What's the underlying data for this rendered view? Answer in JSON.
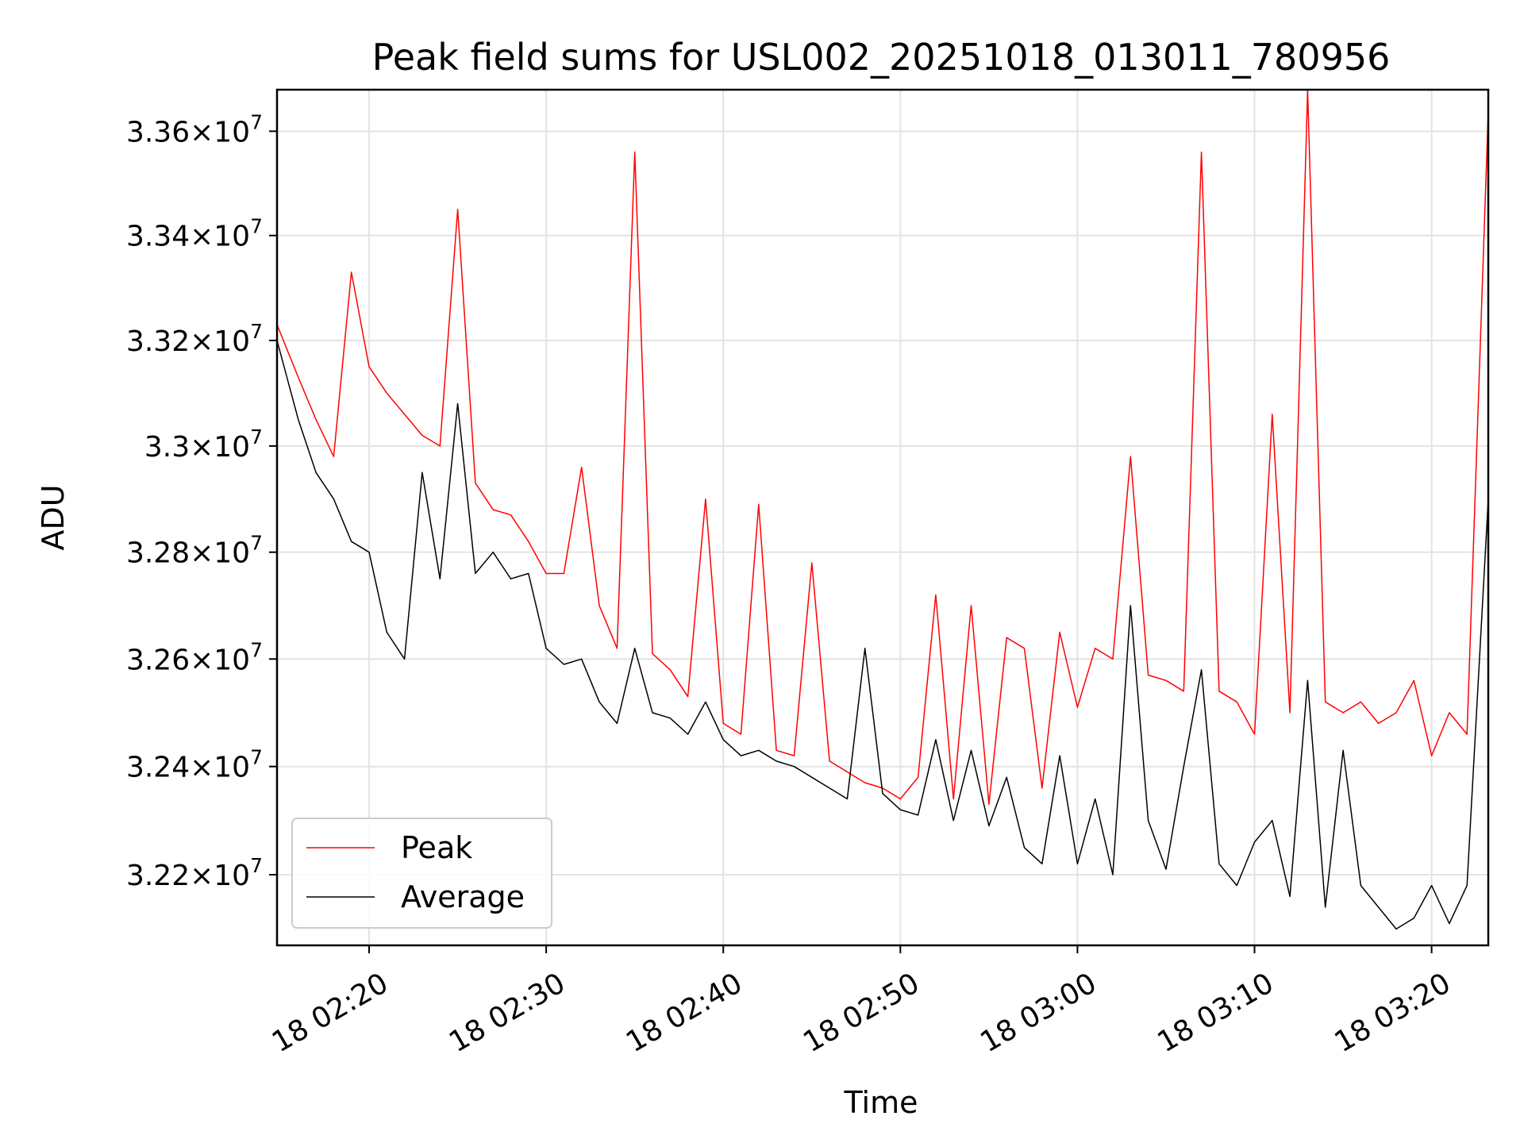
{
  "chart_data": {
    "type": "line",
    "title": "Peak field sums for USL002_20251018_013011_780956",
    "xlabel": "Time",
    "ylabel": "ADU",
    "x_ticks": [
      "18 02:20",
      "18 02:30",
      "18 02:40",
      "18 02:50",
      "18 03:00",
      "18 03:10",
      "18 03:20"
    ],
    "y_ticks": [
      {
        "value": 32200000,
        "mantissa": "3.22",
        "exp": "7"
      },
      {
        "value": 32400000,
        "mantissa": "3.24",
        "exp": "7"
      },
      {
        "value": 32600000,
        "mantissa": "3.26",
        "exp": "7"
      },
      {
        "value": 32800000,
        "mantissa": "3.28",
        "exp": "7"
      },
      {
        "value": 33000000,
        "mantissa": "3.3",
        "exp": "7"
      },
      {
        "value": 33200000,
        "mantissa": "3.32",
        "exp": "7"
      },
      {
        "value": 33400000,
        "mantissa": "3.34",
        "exp": "7"
      },
      {
        "value": 33600000,
        "mantissa": "3.36",
        "exp": "7"
      }
    ],
    "x_range_minutes_from_0220": [
      -5.2,
      63.2
    ],
    "ylim": [
      32070000,
      33680000
    ],
    "y_scale": "log",
    "grid": true,
    "legend_position": "lower-left",
    "series": [
      {
        "name": "Peak",
        "color": "#ff0000",
        "x": [
          -5.2,
          -4,
          -3,
          -2,
          -1,
          0,
          1,
          2,
          3,
          4,
          5,
          6,
          7,
          8,
          9,
          10,
          11,
          12,
          13,
          14,
          15,
          16,
          17,
          18,
          19,
          20,
          21,
          22,
          23,
          24,
          25,
          26,
          27,
          28,
          29,
          30,
          31,
          32,
          33,
          34,
          35,
          36,
          37,
          38,
          39,
          40,
          41,
          42,
          43,
          44,
          45,
          46,
          47,
          48,
          49,
          50,
          51,
          52,
          53,
          54,
          55,
          56,
          57,
          58,
          59,
          60,
          61,
          62,
          63.2
        ],
        "values": [
          33230000,
          33130000,
          33050000,
          32980000,
          33330000,
          33150000,
          33100000,
          33060000,
          33020000,
          33000000,
          33450000,
          32930000,
          32880000,
          32870000,
          32820000,
          32760000,
          32760000,
          32960000,
          32700000,
          32620000,
          33560000,
          32610000,
          32580000,
          32530000,
          32900000,
          32480000,
          32460000,
          32890000,
          32430000,
          32420000,
          32780000,
          32410000,
          32390000,
          32370000,
          32360000,
          32340000,
          32380000,
          32720000,
          32340000,
          32700000,
          32330000,
          32640000,
          32620000,
          32360000,
          32650000,
          32510000,
          32620000,
          32600000,
          32980000,
          32570000,
          32560000,
          32540000,
          33560000,
          32540000,
          32520000,
          32460000,
          33060000,
          32500000,
          33680000,
          32520000,
          32500000,
          32520000,
          32480000,
          32500000,
          32560000,
          32420000,
          32500000,
          32460000,
          33640000
        ]
      },
      {
        "name": "Average",
        "color": "#000000",
        "x": [
          -5.2,
          -4,
          -3,
          -2,
          -1,
          0,
          1,
          2,
          3,
          4,
          5,
          6,
          7,
          8,
          9,
          10,
          11,
          12,
          13,
          14,
          15,
          16,
          17,
          18,
          19,
          20,
          21,
          22,
          23,
          24,
          25,
          26,
          27,
          28,
          29,
          30,
          31,
          32,
          33,
          34,
          35,
          36,
          37,
          38,
          39,
          40,
          41,
          42,
          43,
          44,
          45,
          46,
          47,
          48,
          49,
          50,
          51,
          52,
          53,
          54,
          55,
          56,
          57,
          58,
          59,
          60,
          61,
          62,
          63.2
        ],
        "values": [
          33200000,
          33050000,
          32950000,
          32900000,
          32820000,
          32800000,
          32650000,
          32600000,
          32950000,
          32750000,
          33080000,
          32760000,
          32800000,
          32750000,
          32760000,
          32620000,
          32590000,
          32600000,
          32520000,
          32480000,
          32620000,
          32500000,
          32490000,
          32460000,
          32520000,
          32450000,
          32420000,
          32430000,
          32410000,
          32400000,
          32380000,
          32360000,
          32340000,
          32620000,
          32350000,
          32320000,
          32310000,
          32450000,
          32300000,
          32430000,
          32290000,
          32380000,
          32250000,
          32220000,
          32420000,
          32220000,
          32340000,
          32200000,
          32700000,
          32300000,
          32210000,
          32400000,
          32580000,
          32220000,
          32180000,
          32260000,
          32300000,
          32160000,
          32560000,
          32140000,
          32430000,
          32180000,
          32140000,
          32100000,
          32120000,
          32180000,
          32110000,
          32180000,
          32900000
        ]
      }
    ]
  }
}
